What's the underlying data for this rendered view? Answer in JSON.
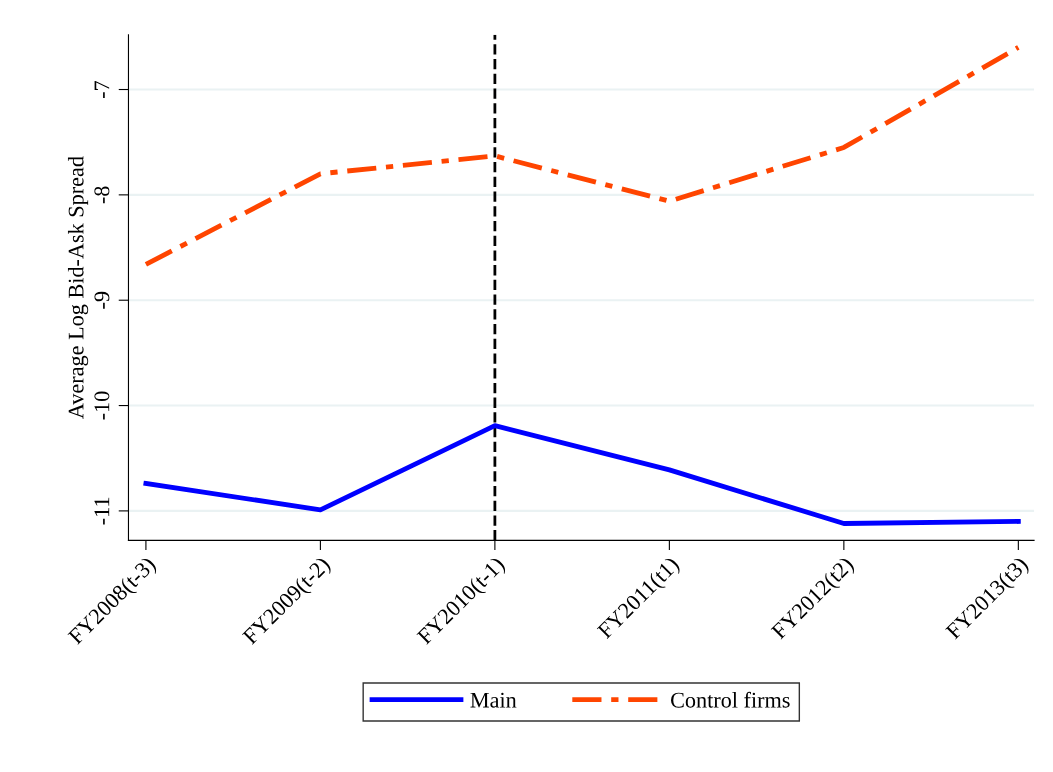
{
  "chart_data": {
    "type": "line",
    "ylabel": "Average Log Bid-Ask Spread",
    "categories": [
      "FY2008(t-3)",
      "FY2009(t-2)",
      "FY2010(t-1)",
      "FY2011(t1)",
      "FY2012(t2)",
      "FY2013(t3)"
    ],
    "series": [
      {
        "name": "Main",
        "color": "#0000ff",
        "line_style": "solid",
        "values": [
          -10.74,
          -10.99,
          -10.19,
          -10.61,
          -11.12,
          -11.1
        ]
      },
      {
        "name": "Control firms",
        "color": "#ff4500",
        "line_style": "dashdot",
        "values": [
          -8.66,
          -7.8,
          -7.63,
          -8.06,
          -7.55,
          -6.6
        ]
      }
    ],
    "ylim": [
      -11.28,
      -6.48
    ],
    "yticks": [
      -11,
      -10,
      -9,
      -8,
      -7
    ],
    "ref_lines": [
      {
        "axis": "x",
        "value": "FY2010(t-1)",
        "color": "#000000",
        "line_style": "dashed"
      }
    ],
    "grid": "y",
    "legend": "bottom"
  }
}
